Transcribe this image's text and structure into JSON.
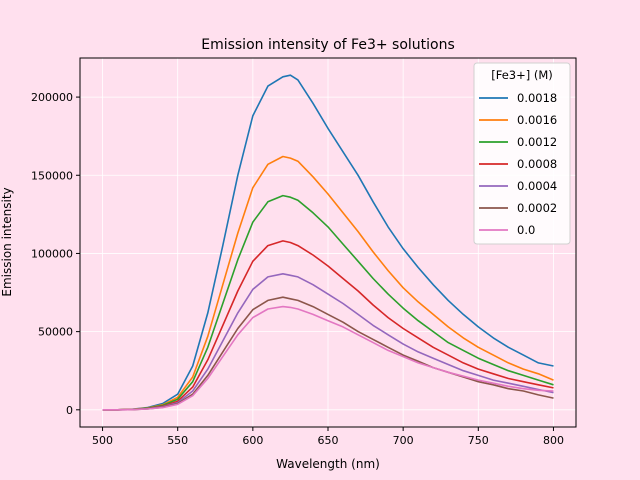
{
  "chart_data": {
    "type": "line",
    "title": "Emission intensity of Fe3+ solutions",
    "xlabel": "Wavelength (nm)",
    "ylabel": "Emission intensity",
    "xlim": [
      485,
      815
    ],
    "ylim": [
      -11000,
      225000
    ],
    "xticks": [
      500,
      550,
      600,
      650,
      700,
      750,
      800
    ],
    "yticks": [
      0,
      50000,
      100000,
      150000,
      200000
    ],
    "grid": true,
    "legend": {
      "title": "[Fe3+] (M)",
      "placement": "upper right"
    },
    "colors": {
      "background": "#ffe0ee",
      "grid": "#ffffff",
      "axis": "#000000"
    },
    "x": [
      500,
      510,
      520,
      530,
      540,
      550,
      560,
      570,
      580,
      590,
      600,
      610,
      620,
      625,
      630,
      640,
      650,
      660,
      670,
      680,
      690,
      700,
      710,
      720,
      730,
      740,
      750,
      760,
      770,
      780,
      790,
      800
    ],
    "series": [
      {
        "name": "0.0018",
        "color": "#1f77b4",
        "values": [
          0,
          0,
          400,
          1500,
          4000,
          10000,
          28000,
          62000,
          105000,
          150000,
          188000,
          207000,
          213000,
          214000,
          211000,
          196000,
          180000,
          165000,
          150000,
          133000,
          117000,
          103000,
          91000,
          80000,
          70000,
          61000,
          53000,
          46000,
          40000,
          35000,
          30000,
          28000
        ]
      },
      {
        "name": "0.0016",
        "color": "#ff7f0e",
        "values": [
          0,
          0,
          300,
          1200,
          3200,
          8000,
          21000,
          47000,
          80000,
          113000,
          142000,
          157000,
          162000,
          161000,
          159000,
          149000,
          138000,
          126000,
          114000,
          101000,
          89000,
          78000,
          69000,
          61000,
          53000,
          46000,
          40000,
          35000,
          30000,
          26000,
          23000,
          19000
        ]
      },
      {
        "name": "0.0012",
        "color": "#2ca02c",
        "values": [
          0,
          0,
          250,
          1000,
          2800,
          6800,
          18000,
          40000,
          68000,
          96000,
          120000,
          133000,
          137000,
          136000,
          134000,
          126000,
          117000,
          106000,
          95000,
          84000,
          74000,
          65000,
          57000,
          50000,
          43000,
          38000,
          33000,
          29000,
          25000,
          22000,
          19000,
          16000
        ]
      },
      {
        "name": "0.0008",
        "color": "#d62728",
        "values": [
          0,
          0,
          200,
          800,
          2300,
          5500,
          14500,
          32000,
          54000,
          76000,
          95000,
          105000,
          108000,
          107000,
          105000,
          99000,
          92000,
          84000,
          76000,
          67000,
          59000,
          52000,
          46000,
          40000,
          35000,
          30000,
          26000,
          23000,
          20000,
          18000,
          16000,
          14000
        ]
      },
      {
        "name": "0.0004",
        "color": "#9467bd",
        "values": [
          0,
          0,
          150,
          700,
          1900,
          4600,
          12000,
          26000,
          44000,
          62000,
          77000,
          85000,
          87000,
          86000,
          85000,
          80000,
          74000,
          68000,
          61000,
          54000,
          48000,
          42000,
          37000,
          33000,
          29000,
          25000,
          22000,
          19000,
          17000,
          15000,
          13000,
          11000
        ]
      },
      {
        "name": "0.0002",
        "color": "#8c564b",
        "values": [
          0,
          0,
          120,
          600,
          1600,
          3900,
          10000,
          22000,
          37000,
          52000,
          64000,
          70000,
          72000,
          71000,
          70000,
          66000,
          61000,
          56000,
          50000,
          45000,
          40000,
          35000,
          31000,
          27000,
          24000,
          21000,
          18000,
          16000,
          13500,
          12000,
          9500,
          7500
        ]
      },
      {
        "name": "0.0",
        "color": "#e377c2",
        "values": [
          0,
          0,
          100,
          500,
          1400,
          3500,
          9000,
          20000,
          34000,
          48000,
          59000,
          64500,
          66000,
          65500,
          64500,
          61000,
          57000,
          53000,
          48000,
          43000,
          38000,
          34000,
          30000,
          27000,
          24000,
          21500,
          19000,
          17000,
          15000,
          13500,
          12500,
          12000
        ]
      }
    ]
  }
}
